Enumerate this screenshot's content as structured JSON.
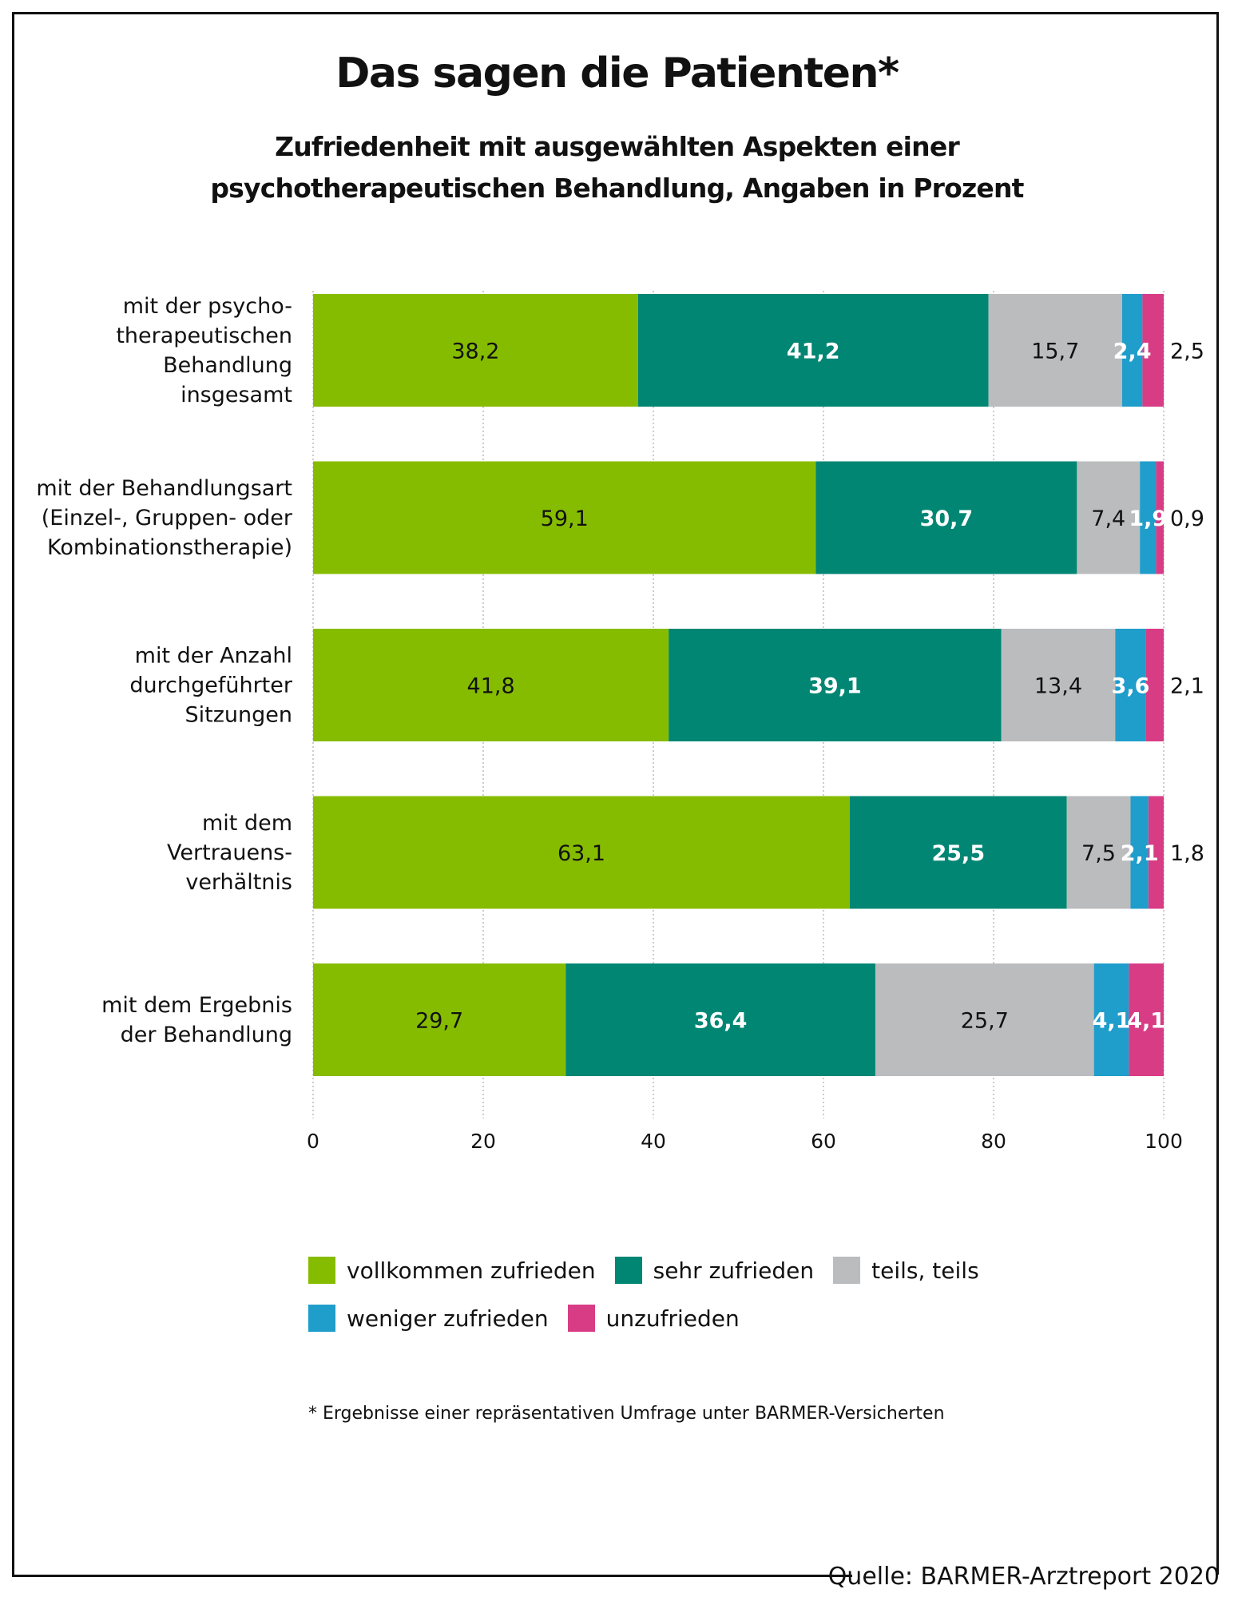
{
  "title": "Das sagen die Patienten*",
  "subtitle_lines": [
    "Zufriedenheit mit ausgewählten Aspekten einer",
    "psychotherapeutischen Behandlung, Angaben in Prozent"
  ],
  "footnote": "* Ergebnisse einer repräsentativen Umfrage unter BARMER-Versicherten",
  "source": "Quelle: BARMER-Arztreport 2020",
  "chart_data": {
    "type": "bar",
    "orientation": "horizontal",
    "stacked": true,
    "title": "Das sagen die Patienten*",
    "subtitle": "Zufriedenheit mit ausgewählten Aspekten einer psychotherapeutischen Behandlung, Angaben in Prozent",
    "xlabel": "",
    "ylabel": "",
    "xlim": [
      0,
      100
    ],
    "xticks": [
      0,
      20,
      40,
      60,
      80,
      100
    ],
    "xtick_labels": [
      "0",
      "20",
      "40",
      "60",
      "80",
      "100"
    ],
    "grid": "vertical dotted",
    "legend_position": "bottom",
    "categories": [
      [
        "mit der psycho-",
        "therapeutischen",
        "Behandlung",
        "insgesamt"
      ],
      [
        "mit der Behandlungsart",
        "(Einzel-, Gruppen- oder",
        "Kombinationstherapie)"
      ],
      [
        "mit der Anzahl",
        "durchgeführter",
        "Sitzungen"
      ],
      [
        "mit dem",
        "Vertrauens-",
        "verhältnis"
      ],
      [
        "mit dem Ergebnis",
        "der Behandlung"
      ]
    ],
    "series": [
      {
        "name": "vollkommen zufrieden",
        "color": "#86bc00",
        "label_color": "#111111",
        "values": [
          38.2,
          59.1,
          41.8,
          63.1,
          29.7
        ],
        "labels": [
          "38,2",
          "59,1",
          "41,8",
          "63,1",
          "29,7"
        ]
      },
      {
        "name": "sehr zufrieden",
        "color": "#008673",
        "label_color": "#ffffff",
        "values": [
          41.2,
          30.7,
          39.1,
          25.5,
          36.4
        ],
        "labels": [
          "41,2",
          "30,7",
          "39,1",
          "25,5",
          "36,4"
        ]
      },
      {
        "name": "teils, teils",
        "color": "#bbbcbe",
        "label_color": "#111111",
        "values": [
          15.7,
          7.4,
          13.4,
          7.5,
          25.7
        ],
        "labels": [
          "15,7",
          "7,4",
          "13,4",
          "7,5",
          "25,7"
        ]
      },
      {
        "name": "weniger zufrieden",
        "color": "#1f9dcb",
        "label_color": "#ffffff",
        "values": [
          2.4,
          1.9,
          3.6,
          2.1,
          4.1
        ],
        "labels": [
          "2,4",
          "1,9",
          "3,6",
          "2,1",
          "4,1"
        ]
      },
      {
        "name": "unzufrieden",
        "color": "#d83c85",
        "label_color": "#111111",
        "values": [
          2.5,
          0.9,
          2.1,
          1.8,
          4.1
        ],
        "labels": [
          "2,5",
          "0,9",
          "2,1",
          "1,8",
          "4,1"
        ],
        "label_outside": [
          true,
          true,
          true,
          true,
          false
        ]
      }
    ]
  }
}
